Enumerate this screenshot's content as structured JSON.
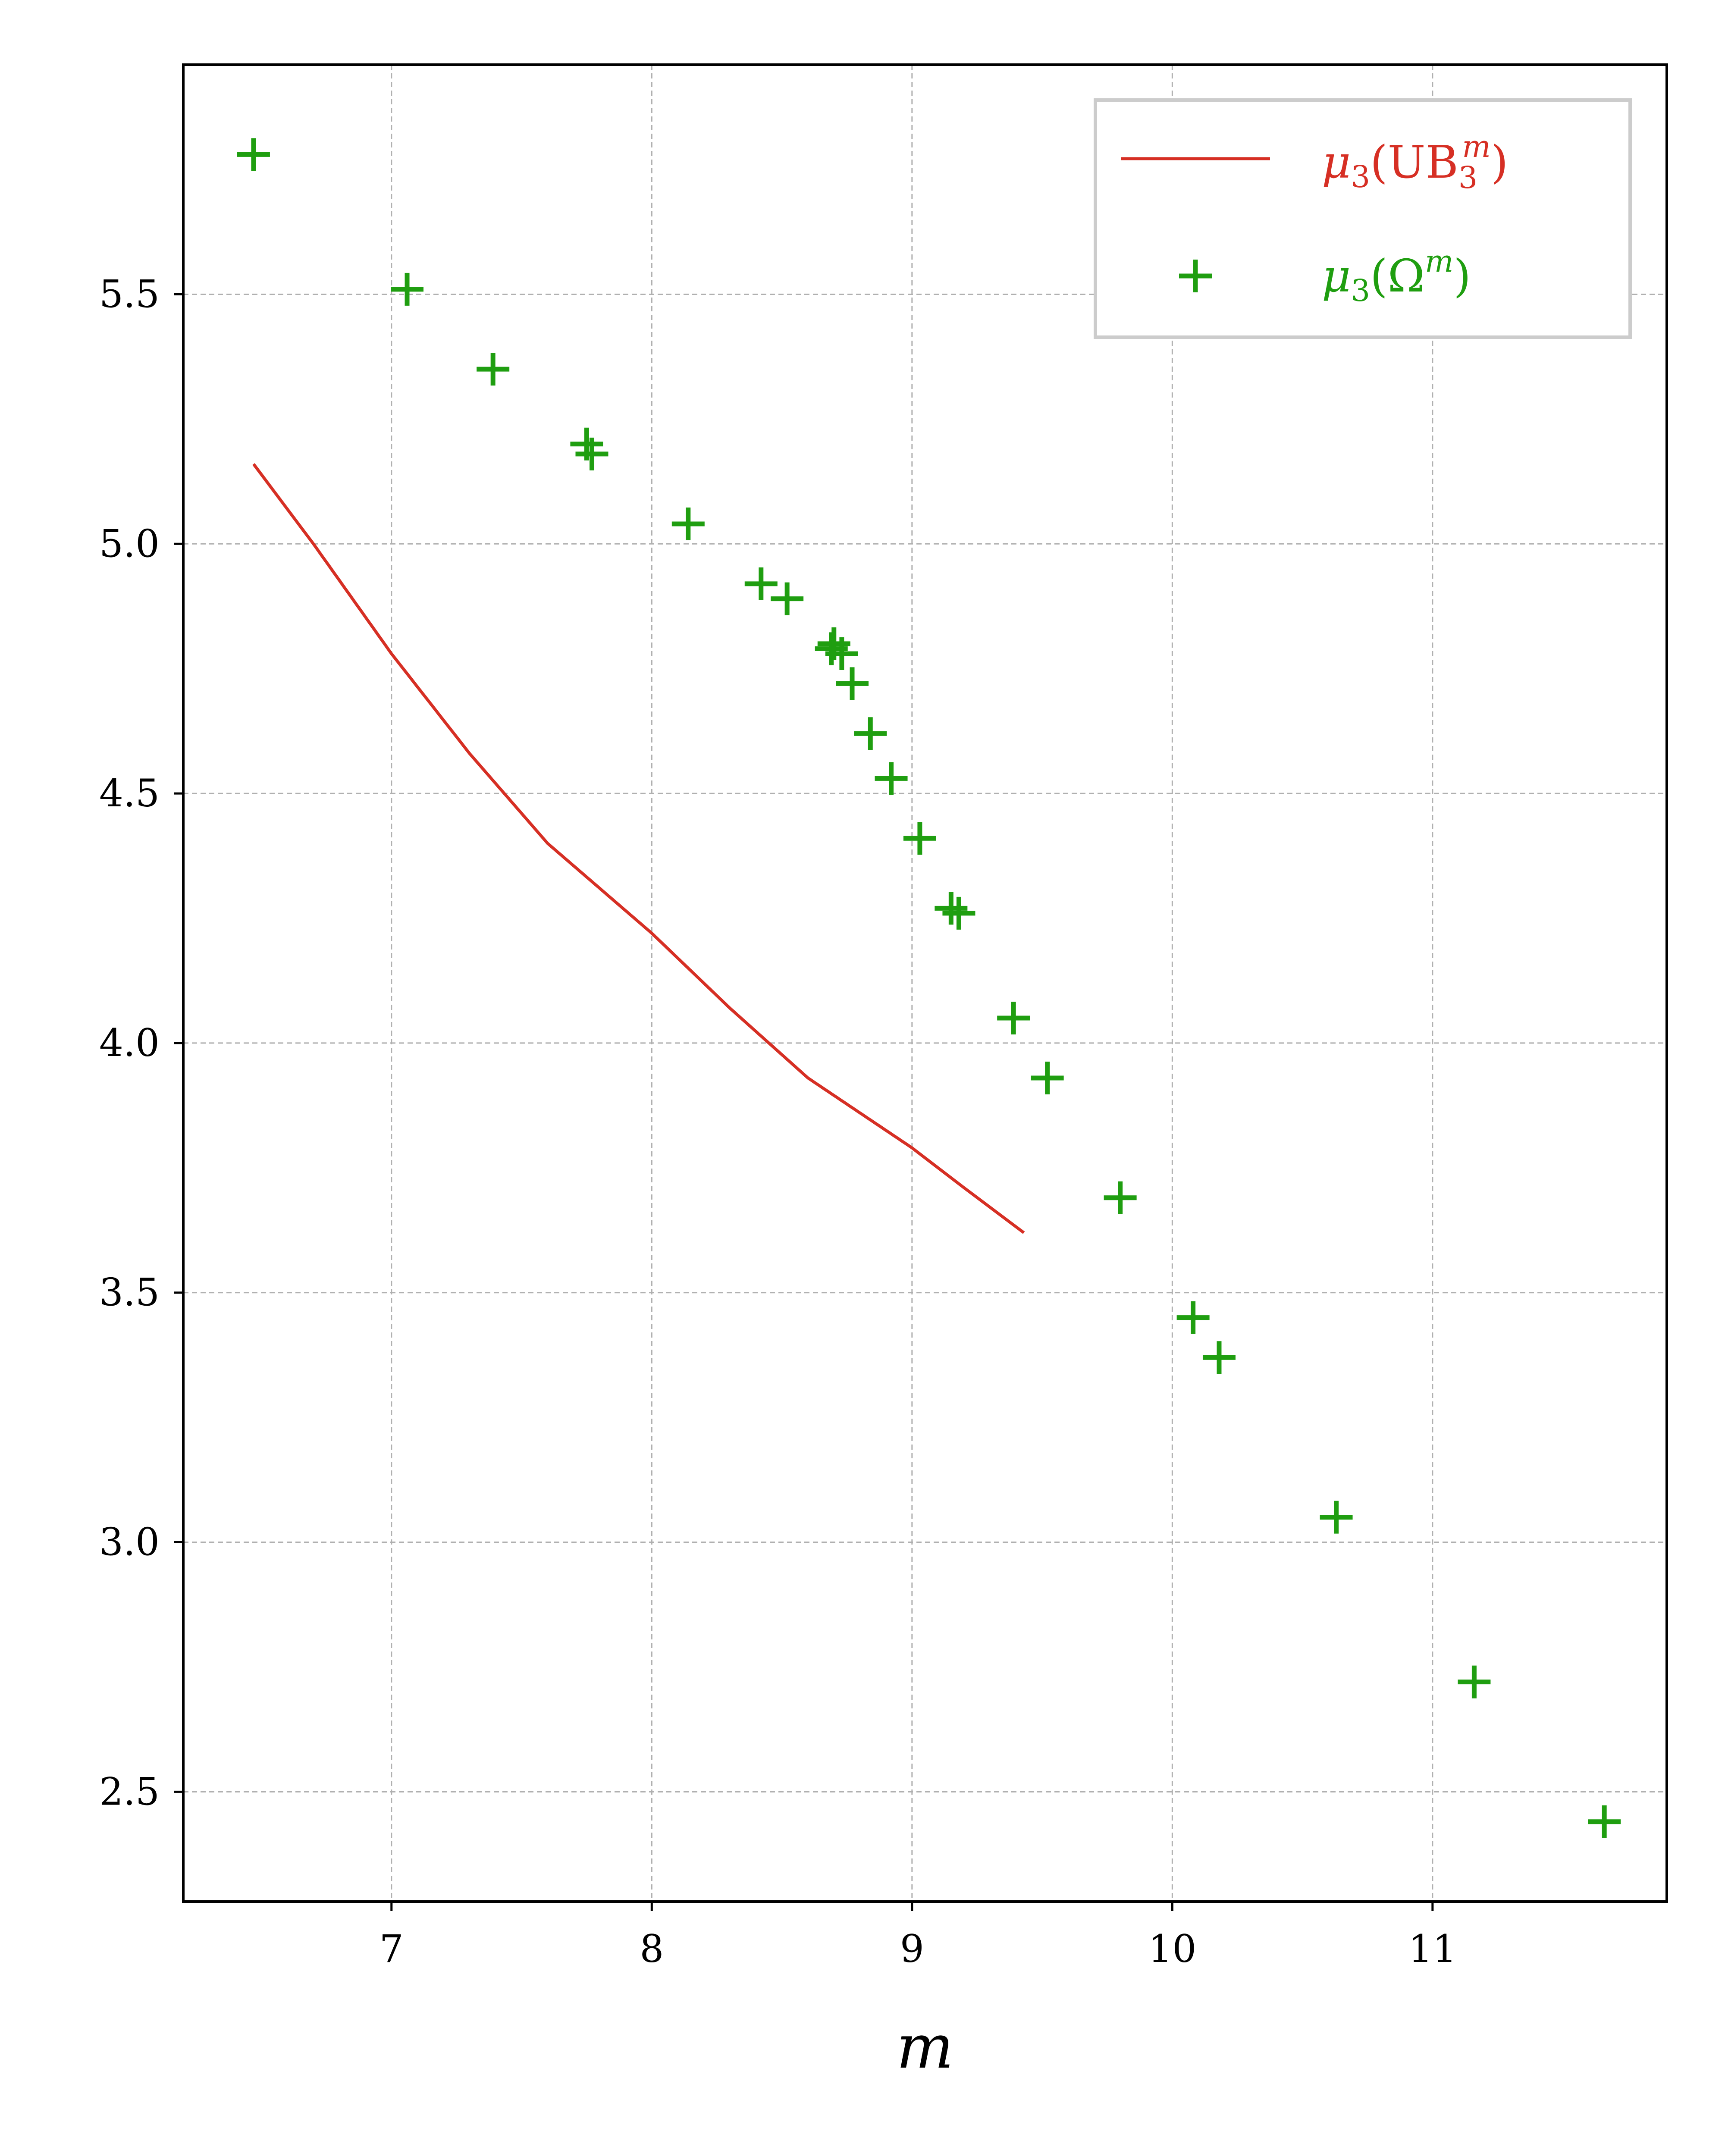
{
  "chart_data": {
    "type": "scatter",
    "xlabel": "m",
    "ylabel": "",
    "xlim": [
      6.2,
      11.9
    ],
    "ylim": [
      2.28,
      5.96
    ],
    "xticks": [
      7,
      8,
      9,
      10,
      11
    ],
    "yticks": [
      2.5,
      3.0,
      3.5,
      4.0,
      4.5,
      5.0,
      5.5
    ],
    "xtick_labels": [
      "7",
      "8",
      "9",
      "10",
      "11"
    ],
    "ytick_labels": [
      "2.5",
      "3.0",
      "3.5",
      "4.0",
      "4.5",
      "5.0",
      "5.5"
    ],
    "grid": true,
    "legend_position": "top-right",
    "series": [
      {
        "name": "μ3(UB3m)",
        "legend_label": {
          "mu": "μ",
          "sub": "3",
          "open": "(UB",
          "sub2": "3",
          "sup": "m",
          "close": ")"
        },
        "kind": "line",
        "color": "#d62f24",
        "x": [
          6.47,
          6.7,
          7.0,
          7.3,
          7.6,
          8.0,
          8.3,
          8.6,
          9.0,
          9.2,
          9.43
        ],
        "y": [
          5.16,
          5.0,
          4.78,
          4.58,
          4.4,
          4.22,
          4.07,
          3.93,
          3.79,
          3.71,
          3.62
        ]
      },
      {
        "name": "μ3(Ωm)",
        "legend_label": {
          "mu": "μ",
          "sub": "3",
          "open": "(Ω",
          "sup": "m",
          "close": ")"
        },
        "kind": "scatter",
        "marker": "plus",
        "color": "#1f9e10",
        "x": [
          6.47,
          7.06,
          7.39,
          7.75,
          7.77,
          8.14,
          8.42,
          8.52,
          8.69,
          8.7,
          8.73,
          8.77,
          8.84,
          8.92,
          9.03,
          9.15,
          9.18,
          9.39,
          9.52,
          9.8,
          10.08,
          10.18,
          10.63,
          11.16,
          11.66
        ],
        "y": [
          5.78,
          5.51,
          5.35,
          5.2,
          5.18,
          5.04,
          4.92,
          4.89,
          4.79,
          4.8,
          4.78,
          4.72,
          4.62,
          4.53,
          4.41,
          4.27,
          4.26,
          4.05,
          3.93,
          3.69,
          3.45,
          3.37,
          3.05,
          2.72,
          2.44
        ]
      }
    ]
  }
}
